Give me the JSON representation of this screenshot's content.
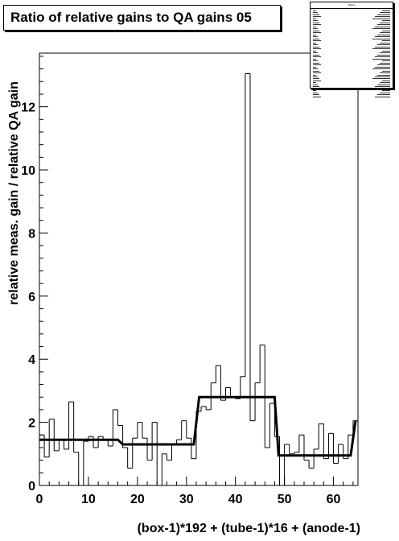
{
  "title": "Ratio of relative gains to QA gains 05",
  "stats_box": {
    "title": "Ratios"
  },
  "chart_data": {
    "type": "histogram",
    "title": "Ratio of relative gains to QA gains 05",
    "xlabel": "(box-1)*192 + (tube-1)*16 + (anode-1)",
    "ylabel": "relative meas. gain / relative QA gain",
    "xlim": [
      0,
      65
    ],
    "ylim": [
      0,
      13.7
    ],
    "xticks": [
      0,
      10,
      20,
      30,
      40,
      50,
      60
    ],
    "yticks": [
      0,
      2,
      4,
      6,
      8,
      10,
      12
    ],
    "grid": false,
    "bin_width": 1,
    "series": [
      {
        "kind": "histogram",
        "x_start": 0,
        "values": [
          1.6,
          0.9,
          2.1,
          1.1,
          1.45,
          1.15,
          2.65,
          1.05,
          0.0,
          1.4,
          1.55,
          1.2,
          1.55,
          1.45,
          1.25,
          2.4,
          1.9,
          1.2,
          0.55,
          1.5,
          2.0,
          1.5,
          0.8,
          2.0,
          0.0,
          1.0,
          0.8,
          1.3,
          1.45,
          2.05,
          1.5,
          0.85,
          2.35,
          2.5,
          2.4,
          3.25,
          3.8,
          2.7,
          3.1,
          2.8,
          2.75,
          3.45,
          13.05,
          2.05,
          3.25,
          4.45,
          1.2,
          2.6,
          1.55,
          0.0,
          1.3,
          1.0,
          1.05,
          1.6,
          0.8,
          0.55,
          1.15,
          1.95,
          0.85,
          1.65,
          0.7,
          1.3,
          0.85,
          1.6,
          2.05
        ]
      },
      {
        "kind": "fit",
        "points": [
          [
            0,
            1.45
          ],
          [
            16,
            1.45
          ],
          [
            17,
            1.3
          ],
          [
            31.5,
            1.3
          ],
          [
            32.6,
            2.8
          ],
          [
            48.0,
            2.8
          ],
          [
            48.8,
            0.95
          ],
          [
            63.5,
            0.95
          ],
          [
            64.5,
            2.05
          ]
        ]
      }
    ]
  }
}
